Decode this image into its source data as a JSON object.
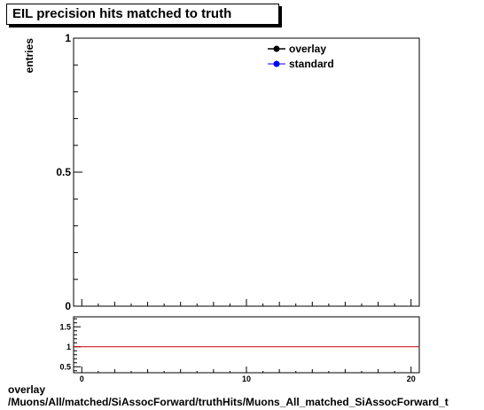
{
  "title": "EIL precision hits matched to truth",
  "footer": {
    "line1": "overlay",
    "line2": "/Muons/All/matched/SiAssocForward/truthHits/Muons_All_matched_SiAssocForward_t"
  },
  "chart_data": [
    {
      "type": "line",
      "ylabel": "entries",
      "ylim": [
        0,
        1
      ],
      "yticks": [
        {
          "value": 0,
          "label": "0"
        },
        {
          "value": 0.5,
          "label": "0.5"
        },
        {
          "value": 1,
          "label": "1"
        }
      ],
      "xlim": [
        -0.5,
        20.5
      ],
      "series": [
        {
          "name": "overlay",
          "color": "#000000",
          "x": [],
          "y": []
        },
        {
          "name": "standard",
          "color": "#0000ff",
          "x": [],
          "y": []
        }
      ],
      "legend": "top-right"
    },
    {
      "type": "line",
      "ylim": [
        0.35,
        1.75
      ],
      "yticks": [
        {
          "value": 0.5,
          "label": "0.5"
        },
        {
          "value": 1,
          "label": "1"
        },
        {
          "value": 1.5,
          "label": "1.5"
        }
      ],
      "xticks": [
        {
          "value": 0,
          "label": "0"
        },
        {
          "value": 10,
          "label": "10"
        },
        {
          "value": 20,
          "label": "20"
        }
      ],
      "xlim": [
        -0.5,
        20.5
      ],
      "reference_line": {
        "y": 1,
        "color": "#cc0000"
      }
    }
  ]
}
